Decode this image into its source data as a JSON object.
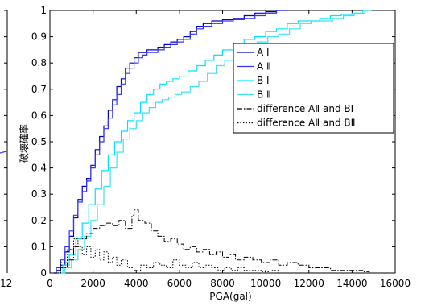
{
  "chart_data": {
    "type": "line",
    "title": "",
    "xlabel": "PGA(gal)",
    "ylabel": "破壊確率",
    "xlim": [
      0,
      16000
    ],
    "ylim": [
      0,
      1
    ],
    "x_ticks": [
      0,
      2000,
      4000,
      6000,
      8000,
      10000,
      12000,
      14000,
      16000
    ],
    "y_ticks": [
      0,
      0.1,
      0.2,
      0.3,
      0.4,
      0.5,
      0.6,
      0.7,
      0.8,
      0.9,
      1
    ],
    "x_tick_labels": [
      "0",
      "2000",
      "4000",
      "6000",
      "8000",
      "10000",
      "12000",
      "14000",
      "16000"
    ],
    "y_tick_labels": [
      "0",
      "0.1",
      "0.2",
      "0.3",
      "0.4",
      "0.5",
      "0.6",
      "0.7",
      "0.8",
      "0.9",
      "1"
    ],
    "grid": false,
    "legend_position": "top-right",
    "left_edge_fragments": {
      "tick_label": "12",
      "marker_y": 0.46
    },
    "series": [
      {
        "name": "A Ⅰ",
        "color": "#0000cc",
        "dash": "solid",
        "x": [
          150,
          300,
          500,
          700,
          900,
          1100,
          1300,
          1500,
          1700,
          1900,
          2100,
          2300,
          2500,
          2700,
          2900,
          3100,
          3300,
          3500,
          3700,
          3900,
          4100,
          4300,
          4500,
          4700,
          5000,
          5300,
          5600,
          5900,
          6200,
          6500,
          6800,
          7100,
          7500,
          8000,
          8500,
          9000,
          9500,
          10000,
          10500,
          11000
        ],
        "values": [
          0.0,
          0.01,
          0.03,
          0.08,
          0.14,
          0.21,
          0.28,
          0.33,
          0.36,
          0.41,
          0.47,
          0.52,
          0.56,
          0.62,
          0.66,
          0.71,
          0.74,
          0.78,
          0.8,
          0.82,
          0.84,
          0.84,
          0.85,
          0.85,
          0.86,
          0.87,
          0.88,
          0.89,
          0.9,
          0.92,
          0.94,
          0.95,
          0.96,
          0.965,
          0.97,
          0.98,
          0.99,
          0.995,
          1.0,
          1.0
        ]
      },
      {
        "name": "A Ⅱ",
        "color": "#3333ff",
        "dash": "solid",
        "x": [
          150,
          300,
          500,
          700,
          900,
          1100,
          1300,
          1500,
          1700,
          1900,
          2100,
          2300,
          2500,
          2700,
          2900,
          3100,
          3300,
          3500,
          3700,
          3900,
          4100,
          4300,
          4500,
          4700,
          5000,
          5300,
          5600,
          5900,
          6200,
          6500,
          6800,
          7100,
          7500,
          8000,
          8500,
          9000,
          9500,
          10000,
          10500,
          11000
        ],
        "values": [
          0.0,
          0.02,
          0.05,
          0.1,
          0.16,
          0.22,
          0.27,
          0.31,
          0.35,
          0.4,
          0.45,
          0.5,
          0.55,
          0.59,
          0.64,
          0.68,
          0.72,
          0.76,
          0.78,
          0.8,
          0.82,
          0.83,
          0.84,
          0.84,
          0.85,
          0.86,
          0.87,
          0.88,
          0.89,
          0.91,
          0.93,
          0.94,
          0.95,
          0.96,
          0.965,
          0.97,
          0.98,
          0.99,
          1.0,
          1.0
        ]
      },
      {
        "name": "B Ⅰ",
        "color": "#00e5ff",
        "dash": "solid",
        "x": [
          300,
          600,
          900,
          1200,
          1500,
          1800,
          2100,
          2400,
          2700,
          3000,
          3300,
          3600,
          3900,
          4200,
          4500,
          4800,
          5100,
          5400,
          5700,
          6000,
          6400,
          6800,
          7200,
          7600,
          8000,
          8500,
          9000,
          9500,
          10000,
          10500,
          11000,
          11500,
          12000,
          12500,
          13000,
          13500,
          14000,
          14500,
          14800
        ],
        "values": [
          0.0,
          0.03,
          0.07,
          0.13,
          0.19,
          0.26,
          0.32,
          0.39,
          0.45,
          0.5,
          0.54,
          0.58,
          0.61,
          0.65,
          0.68,
          0.7,
          0.72,
          0.73,
          0.74,
          0.75,
          0.77,
          0.79,
          0.81,
          0.83,
          0.85,
          0.87,
          0.89,
          0.9,
          0.92,
          0.93,
          0.95,
          0.96,
          0.96,
          0.97,
          0.98,
          0.985,
          0.99,
          1.0,
          1.0
        ]
      },
      {
        "name": "B Ⅱ",
        "color": "#40e0f0",
        "dash": "solid",
        "x": [
          400,
          700,
          1000,
          1300,
          1600,
          1900,
          2200,
          2500,
          2800,
          3100,
          3400,
          3700,
          4000,
          4300,
          4600,
          4900,
          5200,
          5500,
          5800,
          6100,
          6500,
          6900,
          7300,
          7700,
          8100,
          8600,
          9100,
          9600,
          10100,
          10600,
          11100,
          11600,
          12100,
          12600,
          13100,
          13600,
          14100,
          14600,
          14900
        ],
        "values": [
          0.0,
          0.02,
          0.05,
          0.09,
          0.14,
          0.2,
          0.26,
          0.33,
          0.4,
          0.46,
          0.51,
          0.55,
          0.58,
          0.61,
          0.63,
          0.65,
          0.66,
          0.67,
          0.68,
          0.69,
          0.71,
          0.73,
          0.76,
          0.79,
          0.81,
          0.84,
          0.86,
          0.88,
          0.9,
          0.91,
          0.93,
          0.95,
          0.96,
          0.96,
          0.97,
          0.98,
          0.99,
          1.0,
          1.0
        ]
      },
      {
        "name": "difference AⅡ and BⅠ",
        "color": "#000000",
        "dash": "dashdot",
        "x": [
          200,
          500,
          800,
          1100,
          1400,
          1700,
          2000,
          2300,
          2600,
          2900,
          3200,
          3500,
          3800,
          3900,
          4100,
          4400,
          4700,
          5000,
          5300,
          5600,
          5900,
          6200,
          6500,
          6800,
          7100,
          7400,
          7700,
          8000,
          8300,
          8600,
          9000,
          9400,
          9800,
          10200,
          10600,
          11000,
          11500,
          12000,
          12500,
          13000,
          13500,
          14000,
          14500,
          14800
        ],
        "values": [
          0.0,
          0.02,
          0.05,
          0.1,
          0.13,
          0.15,
          0.17,
          0.18,
          0.19,
          0.18,
          0.2,
          0.17,
          0.22,
          0.24,
          0.2,
          0.19,
          0.16,
          0.14,
          0.12,
          0.13,
          0.11,
          0.09,
          0.1,
          0.08,
          0.09,
          0.07,
          0.08,
          0.06,
          0.07,
          0.05,
          0.06,
          0.05,
          0.04,
          0.05,
          0.03,
          0.04,
          0.03,
          0.02,
          0.02,
          0.01,
          0.01,
          0.01,
          0.005,
          0.0
        ]
      },
      {
        "name": "difference AⅡ and BⅡ",
        "color": "#000000",
        "dash": "dotted",
        "x": [
          200,
          500,
          800,
          1100,
          1300,
          1500,
          1700,
          1900,
          2100,
          2300,
          2500,
          2700,
          2900,
          3100,
          3300,
          3600,
          3900,
          4200,
          4500,
          4800,
          5100,
          5400,
          5700,
          6000,
          6300,
          6600,
          6900,
          7200,
          7500,
          7800,
          8100,
          8400,
          8700,
          9000,
          9400,
          9800,
          10200,
          10600,
          11000
        ],
        "values": [
          0.0,
          0.04,
          0.09,
          0.13,
          0.1,
          0.07,
          0.1,
          0.06,
          0.09,
          0.05,
          0.08,
          0.04,
          0.06,
          0.03,
          0.05,
          0.02,
          0.01,
          0.03,
          0.02,
          0.04,
          0.03,
          0.02,
          0.05,
          0.03,
          0.02,
          0.04,
          0.02,
          0.03,
          0.02,
          0.01,
          0.02,
          0.01,
          0.02,
          0.01,
          0.01,
          0.005,
          0.01,
          0.0,
          0.0
        ]
      }
    ]
  }
}
